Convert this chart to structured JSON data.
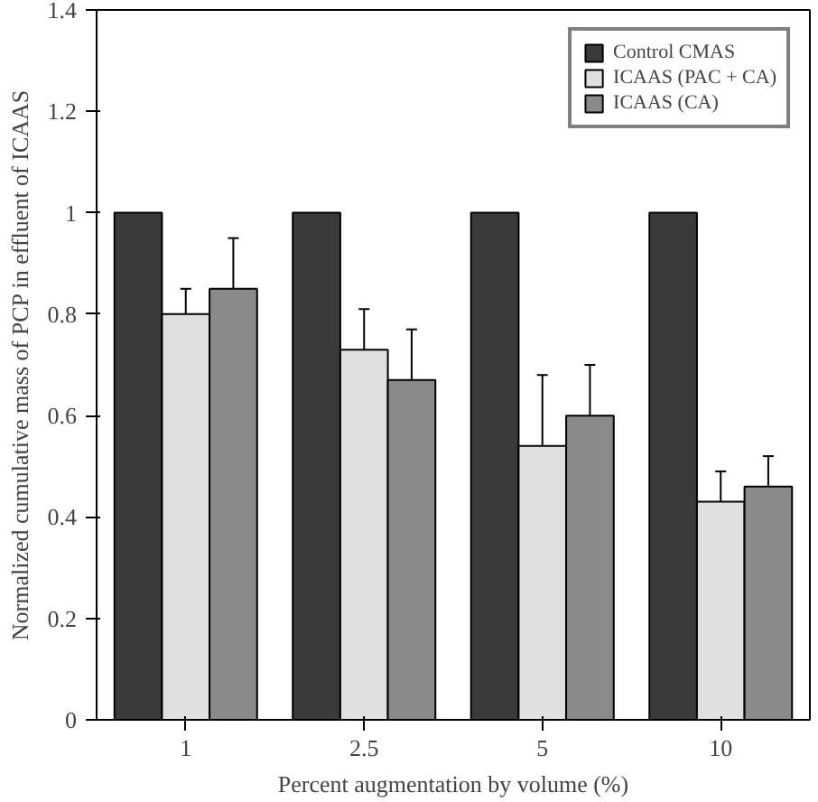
{
  "chart_data": {
    "type": "bar",
    "xlabel": "Percent augmentation by volume (%)",
    "ylabel": "Normalized cumulative mass of PCP in effluent of ICAAS",
    "categories": [
      "1",
      "2.5",
      "5",
      "10"
    ],
    "series": [
      {
        "name": "Control CMAS",
        "color": "#3a3a3a",
        "values": [
          1.0,
          1.0,
          1.0,
          1.0
        ]
      },
      {
        "name": "ICAAS (PAC + CA)",
        "color": "#e0e0e0",
        "values": [
          0.8,
          0.73,
          0.54,
          0.43
        ],
        "errors": [
          0.05,
          0.08,
          0.14,
          0.06
        ]
      },
      {
        "name": "ICAAS (CA)",
        "color": "#8a8a8a",
        "values": [
          0.85,
          0.67,
          0.6,
          0.46
        ],
        "errors": [
          0.1,
          0.1,
          0.1,
          0.06
        ]
      }
    ],
    "ylim": [
      0,
      1.4
    ],
    "yticks": [
      0,
      0.2,
      0.4,
      0.6,
      0.8,
      1,
      1.2,
      1.4
    ],
    "grid": false,
    "legend": "top right"
  }
}
